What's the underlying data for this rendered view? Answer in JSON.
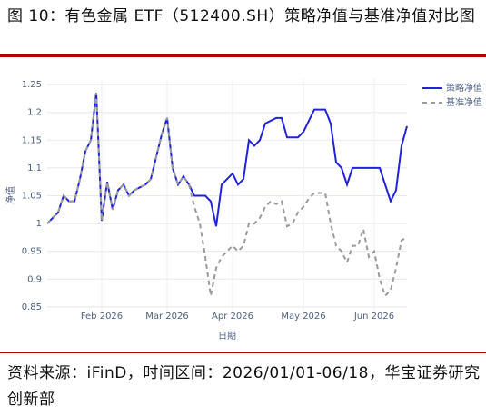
{
  "header": {
    "title": "图 10：有色金属 ETF（512400.SH）策略净值与基准净值对比图"
  },
  "chart_data": {
    "type": "line",
    "xlabel": "日期",
    "ylabel": "净值",
    "categories": [
      null,
      null,
      null,
      null,
      null,
      null,
      null,
      null,
      null,
      null,
      "Feb 2026",
      null,
      null,
      null,
      null,
      null,
      null,
      null,
      null,
      null,
      null,
      null,
      "Mar 2026",
      null,
      null,
      null,
      null,
      null,
      null,
      null,
      null,
      null,
      null,
      null,
      "Apr 2026",
      null,
      null,
      null,
      null,
      null,
      null,
      null,
      null,
      null,
      null,
      null,
      null,
      "May 2026",
      null,
      null,
      null,
      null,
      null,
      null,
      null,
      null,
      null,
      null,
      null,
      null,
      "Jun 2026",
      null,
      null,
      null,
      null,
      null,
      null
    ],
    "series": [
      {
        "name": "策略净值",
        "color": "#2222d8",
        "dash": false,
        "values": [
          1.0,
          1.01,
          1.02,
          1.05,
          1.04,
          1.04,
          1.08,
          1.13,
          1.15,
          1.235,
          1.005,
          1.075,
          1.025,
          1.06,
          1.07,
          1.05,
          1.06,
          1.065,
          1.07,
          1.08,
          1.12,
          1.16,
          1.19,
          1.1,
          1.07,
          1.085,
          1.07,
          1.05,
          1.05,
          1.05,
          1.04,
          0.995,
          1.07,
          1.08,
          1.09,
          1.07,
          1.08,
          1.15,
          1.14,
          1.15,
          1.18,
          1.185,
          1.19,
          1.19,
          1.155,
          1.155,
          1.155,
          1.165,
          1.185,
          1.205,
          1.205,
          1.205,
          1.18,
          1.11,
          1.1,
          1.07,
          1.1,
          1.1,
          1.1,
          1.1,
          1.1,
          1.1,
          1.07,
          1.04,
          1.06,
          1.14,
          1.175
        ]
      },
      {
        "name": "基准净值",
        "color": "#9a9a9a",
        "dash": true,
        "values": [
          1.0,
          1.01,
          1.02,
          1.05,
          1.04,
          1.04,
          1.08,
          1.13,
          1.15,
          1.235,
          1.005,
          1.075,
          1.025,
          1.06,
          1.07,
          1.05,
          1.06,
          1.065,
          1.07,
          1.08,
          1.12,
          1.16,
          1.19,
          1.1,
          1.07,
          1.085,
          1.07,
          1.03,
          1.0,
          0.94,
          0.87,
          0.92,
          0.94,
          0.95,
          0.96,
          0.95,
          0.96,
          1.0,
          1.0,
          1.01,
          1.03,
          1.04,
          1.035,
          1.04,
          0.995,
          1.0,
          1.02,
          1.03,
          1.045,
          1.055,
          1.055,
          1.055,
          1.0,
          0.96,
          0.95,
          0.93,
          0.96,
          0.96,
          0.99,
          0.94,
          0.95,
          0.9,
          0.87,
          0.88,
          0.92,
          0.97,
          0.975
        ]
      }
    ],
    "ylim": [
      0.84,
      1.26
    ],
    "yticks": [
      0.85,
      0.9,
      0.95,
      1,
      1.05,
      1.1,
      1.15,
      1.2,
      1.25
    ],
    "grid": true,
    "legend": "top-right"
  },
  "footer": {
    "source": "资料来源：iFinD，时间区间：2026/01/01-06/18，华宝证券研究创新部"
  }
}
